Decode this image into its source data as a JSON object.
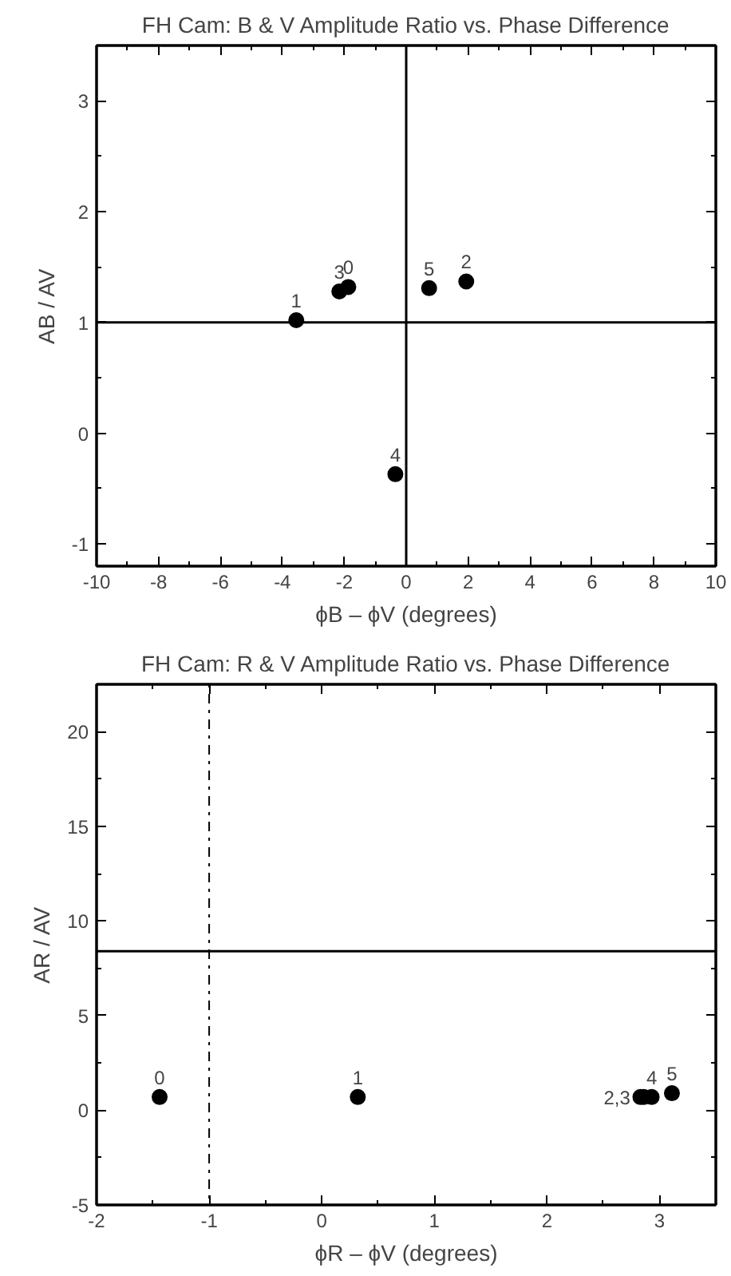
{
  "chart_data": [
    {
      "type": "scatter",
      "title": "FH Cam: B & V Amplitude Ratio vs. Phase Difference",
      "xlabel": "ϕB – ϕV (degrees)",
      "ylabel": "AB / AV",
      "x": [
        -1.87,
        -3.55,
        1.94,
        -2.16,
        -0.35,
        0.74
      ],
      "series": [
        {
          "color": "#000000",
          "values": [
            1.32,
            1.02,
            1.37,
            1.28,
            -0.37,
            1.31
          ]
        }
      ],
      "marker": "circle",
      "grid": false,
      "xlim": [
        -10,
        10
      ],
      "ylim": [
        -1.2,
        3.5
      ],
      "xticks": [
        -10,
        {
          "value": -9,
          "label": null
        },
        -8,
        {
          "value": -7,
          "label": null
        },
        -6,
        {
          "value": -5,
          "label": null
        },
        -4,
        {
          "value": -3,
          "label": null
        },
        -2,
        {
          "value": -1,
          "label": null
        },
        0,
        {
          "value": 1,
          "label": null
        },
        2,
        {
          "value": 3,
          "label": null
        },
        4,
        {
          "value": 5,
          "label": null
        },
        6,
        {
          "value": 7,
          "label": null
        },
        8,
        {
          "value": 9,
          "label": null
        },
        10
      ],
      "yticks": [
        -1,
        {
          "value": -0.5,
          "label": null
        },
        0,
        {
          "value": 0.5,
          "label": null
        },
        1,
        {
          "value": 1.5,
          "label": null
        },
        2,
        {
          "value": 2.5,
          "label": null
        },
        3
      ],
      "ref_lines": [
        {
          "axis": "y",
          "value": 1,
          "label": null,
          "color": "#000000"
        },
        {
          "axis": "x",
          "value": 0,
          "label": null,
          "color": "#000000"
        }
      ],
      "annotations": [
        {
          "text": "0",
          "x": -1.87,
          "y": 1.32
        },
        {
          "text": "1",
          "x": -3.55,
          "y": 1.02
        },
        {
          "text": "2",
          "x": 1.94,
          "y": 1.37
        },
        {
          "text": "3",
          "x": -2.16,
          "y": 1.28
        },
        {
          "text": "4",
          "x": -0.35,
          "y": -0.37
        },
        {
          "text": "5",
          "x": 0.74,
          "y": 1.31
        }
      ]
    },
    {
      "type": "scatter",
      "title": "FH Cam: R & V Amplitude Ratio vs. Phase Difference",
      "xlabel": "ϕR – ϕV (degrees)",
      "ylabel": "AR / AV",
      "x": [
        -1.44,
        0.32,
        2.83,
        2.86,
        2.93,
        3.11
      ],
      "series": [
        {
          "color": "#000000",
          "values": [
            0.7,
            0.7,
            0.7,
            0.7,
            0.7,
            0.9
          ]
        }
      ],
      "marker": "circle",
      "grid": false,
      "xlim": [
        -2,
        3.5
      ],
      "ylim": [
        -5,
        22.5
      ],
      "xticks": [
        -2,
        {
          "value": -1.5,
          "label": null
        },
        -1,
        {
          "value": -0.5,
          "label": null
        },
        0,
        {
          "value": 0.5,
          "label": null
        },
        1,
        {
          "value": 1.5,
          "label": null
        },
        2,
        {
          "value": 2.5,
          "label": null
        },
        3
      ],
      "yticks": [
        -5,
        {
          "value": -2.5,
          "label": null
        },
        0,
        {
          "value": 2.5,
          "label": null
        },
        5,
        {
          "value": 7.5,
          "label": null
        },
        10,
        {
          "value": 12.5,
          "label": null
        },
        15,
        {
          "value": 17.5,
          "label": null
        },
        20
      ],
      "ref_lines": [
        {
          "axis": "x",
          "value": -1,
          "label": null,
          "color": "#000000",
          "line_style": "dashdot"
        },
        {
          "axis": "y",
          "value": 8.4,
          "label": null,
          "color": "#000000"
        }
      ],
      "annotations": [
        {
          "text": "0",
          "x": -1.44,
          "y": 0.7
        },
        {
          "text": "1",
          "x": 0.32,
          "y": 0.7
        },
        {
          "text": "2,3",
          "x": 2.84,
          "y": 0.7
        },
        {
          "text": "4",
          "x": 2.93,
          "y": 0.7
        },
        {
          "text": "5",
          "x": 3.11,
          "y": 0.9
        }
      ]
    }
  ]
}
